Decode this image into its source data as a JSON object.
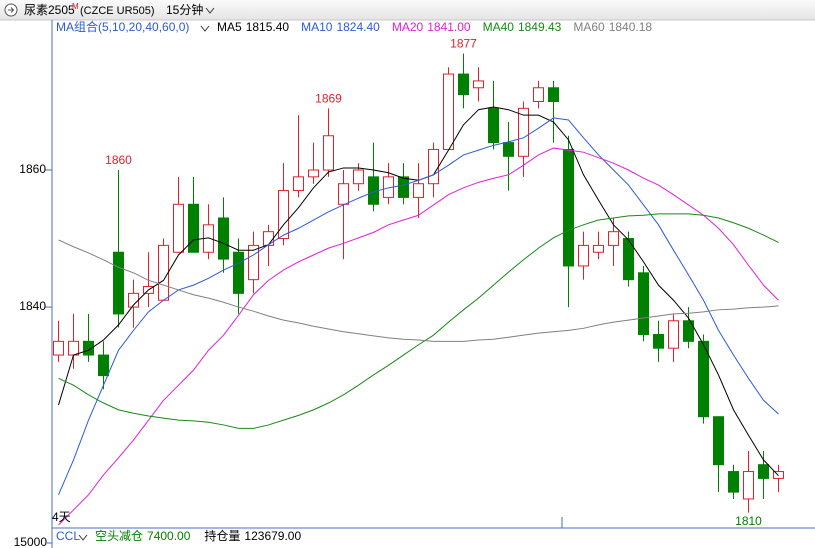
{
  "header": {
    "symbol": "尿素2505",
    "badge": "M",
    "code": "(CZCE UR505)",
    "period": "15分钟"
  },
  "chart_data": {
    "type": "candlestick",
    "ma_group": "MA组合(5,10,20,40,60,0)",
    "up_color": "#e0202a",
    "down_color": "#008000",
    "open": [
      1833,
      1833,
      1835,
      1833,
      1848,
      1840,
      1842,
      1841,
      1848,
      1855,
      1848,
      1853,
      1848,
      1844,
      1849,
      1850,
      1857,
      1859,
      1860,
      1855,
      1858,
      1859,
      1856,
      1859,
      1856,
      1858,
      1863,
      1874,
      1872,
      1869,
      1864,
      1862,
      1870,
      1872,
      1863,
      1846,
      1848,
      1849,
      1850,
      1845,
      1836,
      1834,
      1838,
      1835,
      1824,
      1816,
      1812,
      1817,
      1815
    ],
    "high": [
      1838,
      1839,
      1839,
      1835,
      1860,
      1844,
      1848,
      1850,
      1859,
      1859,
      1855,
      1856,
      1850,
      1851,
      1852,
      1861,
      1868,
      1864,
      1869,
      1860,
      1861,
      1864,
      1861,
      1861,
      1861,
      1864,
      1875,
      1877,
      1875,
      1873,
      1867,
      1870,
      1873,
      1873,
      1865,
      1851,
      1851,
      1853,
      1851,
      1846,
      1838,
      1839,
      1840,
      1836,
      1824,
      1817,
      1819,
      1819,
      1817
    ],
    "low": [
      1832,
      1831,
      1832,
      1828,
      1837,
      1837,
      1840,
      1841,
      1848,
      1848,
      1847,
      1845,
      1839,
      1842,
      1846,
      1849,
      1856,
      1858,
      1859,
      1847,
      1857,
      1854,
      1855,
      1855,
      1853,
      1856,
      1863,
      1869,
      1870,
      1863,
      1857,
      1859,
      1869,
      1864,
      1840,
      1844,
      1847,
      1846,
      1843,
      1835,
      1832,
      1832,
      1834,
      1823,
      1813,
      1812,
      1810,
      1812,
      1813
    ],
    "close": [
      1835,
      1835,
      1833,
      1830,
      1839,
      1842,
      1843,
      1849,
      1855,
      1848,
      1852,
      1847,
      1842,
      1849,
      1851,
      1857,
      1859,
      1860,
      1865,
      1858,
      1860,
      1855,
      1859,
      1856,
      1858,
      1863,
      1874,
      1871,
      1873,
      1864,
      1862,
      1869,
      1872,
      1870,
      1846,
      1849,
      1849,
      1851,
      1844,
      1836,
      1834,
      1838,
      1835,
      1824,
      1817,
      1813,
      1816,
      1815,
      1816
    ],
    "series": [
      {
        "name": "MA5",
        "color": "#000000",
        "last_label": "1815.40",
        "values": [
          1825.7,
          1833,
          1833.7,
          1835.2,
          1837.4,
          1840.3,
          1842.5,
          1843.9,
          1847.6,
          1849.8,
          1850.1,
          1849.3,
          1848.3,
          1848.3,
          1849.1,
          1852,
          1854.5,
          1857.4,
          1859.7,
          1860.3,
          1860.3,
          1860,
          1859.6,
          1858.8,
          1858.5,
          1859.3,
          1862.9,
          1866.6,
          1868.8,
          1869.2,
          1868.8,
          1868,
          1868,
          1867,
          1864.4,
          1859.3,
          1855.6,
          1852,
          1849.8,
          1846.6,
          1843.2,
          1841,
          1838.4,
          1834.5,
          1830.1,
          1825,
          1821.3,
          1817.7,
          1815.4
        ]
      },
      {
        "name": "MA10",
        "color": "#2a5bd7",
        "last_label": "1824.40",
        "values": [
          1812.6,
          1817.7,
          1823.5,
          1828.6,
          1833.7,
          1836.6,
          1839.3,
          1841,
          1842.5,
          1843.2,
          1844.2,
          1845.4,
          1846.4,
          1847.6,
          1849.1,
          1850.5,
          1851.5,
          1852.7,
          1853.9,
          1854.9,
          1855.9,
          1856.8,
          1857.4,
          1857.8,
          1858.5,
          1859.3,
          1860.7,
          1862.2,
          1862.9,
          1863.6,
          1864.1,
          1864.7,
          1866.1,
          1867.6,
          1867.3,
          1864.7,
          1862.2,
          1860,
          1857.8,
          1854.9,
          1852,
          1848.3,
          1844.7,
          1841,
          1836.6,
          1833,
          1829.6,
          1826.4,
          1824.4
        ]
      },
      {
        "name": "MA20",
        "color": "#e020d8",
        "last_label": "1841.00",
        "values": [
          1808.2,
          1810.4,
          1812.6,
          1815.5,
          1818,
          1820.6,
          1823.5,
          1826.4,
          1828.6,
          1830.8,
          1833.7,
          1835.9,
          1838.8,
          1841.8,
          1843.9,
          1845.4,
          1846.6,
          1847.6,
          1848.6,
          1849.3,
          1850.1,
          1850.9,
          1852,
          1852.7,
          1853.4,
          1854.9,
          1856.4,
          1857.4,
          1858.2,
          1858.8,
          1859.3,
          1860.7,
          1862.2,
          1863.2,
          1862.9,
          1862.6,
          1861.8,
          1861,
          1860,
          1858.8,
          1857.8,
          1856.4,
          1854.9,
          1853.4,
          1851.5,
          1849.1,
          1846.1,
          1843.2,
          1841
        ]
      },
      {
        "name": "MA40",
        "color": "#178a17",
        "last_label": "1849.43",
        "values": [
          1829.6,
          1828.6,
          1827.2,
          1826,
          1825,
          1824.5,
          1824.1,
          1823.8,
          1823.5,
          1823.4,
          1823.2,
          1822.8,
          1822.3,
          1822.3,
          1822.8,
          1823.5,
          1824.2,
          1825,
          1826,
          1827.2,
          1828.6,
          1830.1,
          1831.5,
          1833,
          1834.5,
          1835.9,
          1837.8,
          1839.6,
          1841.3,
          1843.2,
          1845.1,
          1846.9,
          1848.6,
          1850.1,
          1851.2,
          1852,
          1852.7,
          1853,
          1853.3,
          1853.4,
          1853.6,
          1853.6,
          1853.6,
          1853.4,
          1853,
          1852.3,
          1851.5,
          1850.5,
          1849.43
        ]
      },
      {
        "name": "MA60",
        "color": "#808080",
        "last_label": "1840.18",
        "values": [
          1849.8,
          1848.8,
          1847.9,
          1846.9,
          1845.8,
          1845,
          1843.9,
          1843.2,
          1842.5,
          1841.8,
          1841.3,
          1840.7,
          1840,
          1839.4,
          1838.7,
          1838.1,
          1837.7,
          1837.2,
          1836.8,
          1836.4,
          1836.1,
          1835.8,
          1835.5,
          1835.3,
          1835.2,
          1835,
          1835,
          1835,
          1835.2,
          1835.3,
          1835.6,
          1835.9,
          1836.2,
          1836.4,
          1836.6,
          1836.9,
          1837.4,
          1837.8,
          1838.1,
          1838.4,
          1838.7,
          1839,
          1839.1,
          1839.3,
          1839.6,
          1839.7,
          1839.9,
          1840,
          1840.18
        ]
      }
    ],
    "annotations": [
      1860,
      1869,
      1877,
      1810
    ],
    "day_label": "4天",
    "ylim": [
      1808.2,
      1879.7
    ],
    "yticks": [
      1840,
      1860
    ],
    "grid": false
  },
  "indicator": {
    "name": "CCL",
    "items": [
      {
        "label": "空头减仓",
        "value": "7400.00",
        "color": "#008000"
      },
      {
        "label": "持仓量",
        "value": "123679.00",
        "color": "#000000"
      }
    ],
    "ytick": 15000
  }
}
